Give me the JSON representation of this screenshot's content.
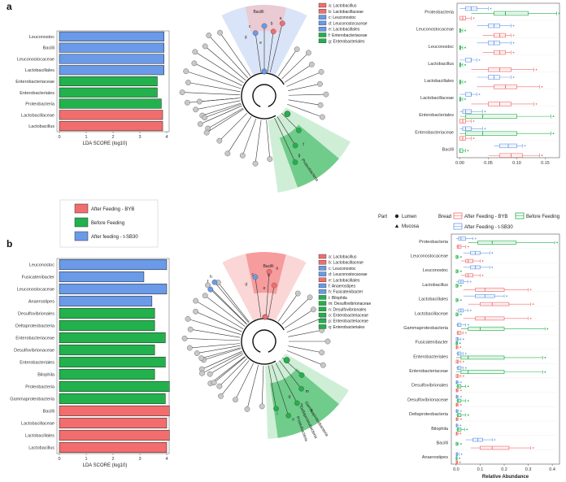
{
  "colors": {
    "byb": "#f26d6d",
    "before": "#22b14c",
    "sb30": "#6a9ae8",
    "clade_red": "#f7b5b5",
    "clade_blue": "#b9cdf3",
    "clade_green": "#a8e0b4",
    "node_grey": "#c8c8c8"
  },
  "panels": [
    "a",
    "b"
  ],
  "legend_groups": {
    "entries": [
      "After Feeding - BYB",
      "Before Feeding",
      "After feeding - t-SB30"
    ],
    "colors": [
      "#f26d6d",
      "#22b14c",
      "#6a9ae8"
    ]
  },
  "legend_part": {
    "title": "Part",
    "entries": [
      "Lumen",
      "Mucosa"
    ]
  },
  "legend_bread": {
    "title": "Bread",
    "entries": [
      "After Feeding - BYB",
      "Before Feeding",
      "After Feeding - t-SB30"
    ],
    "colors": [
      "#f26d6d",
      "#22b14c",
      "#6a9ae8"
    ]
  },
  "clade_a": {
    "legend": [
      {
        "text": "a: Lactobacillus",
        "color": "#f26d6d"
      },
      {
        "text": "b: Lactobacillaceae",
        "color": "#f26d6d"
      },
      {
        "text": "c: Leuconostoc",
        "color": "#6a9ae8"
      },
      {
        "text": "d: Leuconostocaceae",
        "color": "#6a9ae8"
      },
      {
        "text": "e: Lactobacillales",
        "color": "#6a9ae8"
      },
      {
        "text": "f: Enterobacteriaceae",
        "color": "#22b14c"
      },
      {
        "text": "g: Enterobacteriales",
        "color": "#22b14c"
      }
    ],
    "labels": [
      "Bacilli",
      "Proteobacteria"
    ],
    "node_letters": [
      "a",
      "b",
      "c",
      "d",
      "e",
      "f",
      "g"
    ]
  },
  "clade_b": {
    "legend": [
      {
        "text": "a: Lactobacillus",
        "color": "#f26d6d"
      },
      {
        "text": "b: Lactobacillaceae",
        "color": "#f26d6d"
      },
      {
        "text": "c: Leuconostoc",
        "color": "#6a9ae8"
      },
      {
        "text": "d: Leuconostocaceae",
        "color": "#6a9ae8"
      },
      {
        "text": "e: Lactobacillales",
        "color": "#f26d6d"
      },
      {
        "text": "f: Anaerostipes",
        "color": "#6a9ae8"
      },
      {
        "text": "h: Fusicatenibacter",
        "color": "#6a9ae8"
      },
      {
        "text": "i: Bilophila",
        "color": "#22b14c"
      },
      {
        "text": "m: Desulfovibrionaceae",
        "color": "#22b14c"
      },
      {
        "text": "n: Desulfovibrionales",
        "color": "#22b14c"
      },
      {
        "text": "o: Enterobacteriaceae",
        "color": "#22b14c"
      },
      {
        "text": "p: Enterobacteriaceae",
        "color": "#22b14c"
      },
      {
        "text": "q: Enterobacteriales",
        "color": "#22b14c"
      }
    ],
    "labels": [
      "Bacilli",
      "Gammaproteobacteria",
      "Deltaproteobacteria",
      "Proteobacteria"
    ],
    "node_letters": [
      "a",
      "b",
      "c",
      "d",
      "e",
      "f",
      "h",
      "i",
      "m",
      "n",
      "o",
      "p",
      "q"
    ]
  },
  "chart_data": [
    {
      "type": "bar",
      "panel": "a",
      "orientation": "horizontal",
      "categories": [
        "Leuconostoc",
        "Bacilli",
        "Leuconostocaceae",
        "Lactobacillales",
        "Enterobacteriaceae",
        "Enterobacteriales",
        "Proteobacteria",
        "Lactobacillaceae",
        "Lactobacillus"
      ],
      "values": [
        3.9,
        3.9,
        3.9,
        3.9,
        3.65,
        3.65,
        3.8,
        3.85,
        3.85
      ],
      "groups": [
        "sb30",
        "sb30",
        "sb30",
        "sb30",
        "before",
        "before",
        "before",
        "byb",
        "byb"
      ],
      "xlabel": "LDA SCORE (log10)",
      "xlim": [
        0,
        4
      ],
      "xticks": [
        "0",
        "1",
        "2",
        "3",
        "4"
      ]
    },
    {
      "type": "bar",
      "panel": "b",
      "orientation": "horizontal",
      "categories": [
        "Leuconostoc",
        "Fusicatenibacter",
        "Leuconostocaceae",
        "Anaerostipes",
        "Desulfovibrionales",
        "Deltaproteobacteria",
        "Enterobacteriaceae",
        "Desulfovibrionaceae",
        "Enterobacteriales",
        "Bilophila",
        "Proteobacteria",
        "Gammaproteobacteria",
        "Bacilli",
        "Lactobacillaceae",
        "Lactobacillales",
        "Lactobacillus"
      ],
      "values": [
        4.0,
        3.15,
        4.0,
        3.45,
        3.55,
        3.55,
        3.95,
        3.55,
        3.95,
        3.55,
        4.1,
        3.95,
        4.1,
        4.0,
        4.1,
        4.0
      ],
      "groups": [
        "sb30",
        "sb30",
        "sb30",
        "sb30",
        "before",
        "before",
        "before",
        "before",
        "before",
        "before",
        "before",
        "before",
        "byb",
        "byb",
        "byb",
        "byb"
      ],
      "xlabel": "LDA SCORE (log10)",
      "xlim": [
        0,
        4
      ],
      "xticks": [
        "0",
        "1",
        "2",
        "3",
        "4"
      ]
    },
    {
      "type": "box",
      "panel": "a",
      "categories": [
        "Proteobacteria",
        "Leuconostocaceae",
        "Leuconostoc",
        "Lactobacillus",
        "Lactobacillales",
        "Lactobacillaceae",
        "Enterobacteriales",
        "Enterobacteriaceae",
        "Bacilli"
      ],
      "xlim": [
        -0.005,
        0.175
      ],
      "xticks": [
        "0.00",
        "0.05",
        "0.10",
        "0.15"
      ],
      "xlabel": "",
      "boxes": [
        {
          "cat": 0,
          "group": "sb30",
          "min": 0.0,
          "q1": 0.01,
          "med": 0.02,
          "q3": 0.03,
          "max": 0.05
        },
        {
          "cat": 0,
          "group": "before",
          "min": 0.02,
          "q1": 0.06,
          "med": 0.08,
          "q3": 0.12,
          "max": 0.17
        },
        {
          "cat": 0,
          "group": "byb",
          "min": 0.0,
          "q1": 0.0,
          "med": 0.005,
          "q3": 0.01,
          "max": 0.02
        },
        {
          "cat": 1,
          "group": "sb30",
          "min": 0.03,
          "q1": 0.05,
          "med": 0.06,
          "q3": 0.07,
          "max": 0.09
        },
        {
          "cat": 1,
          "group": "before",
          "min": 0.0,
          "q1": 0.0,
          "med": 0.0,
          "q3": 0.0,
          "max": 0.005
        },
        {
          "cat": 1,
          "group": "byb",
          "min": 0.04,
          "q1": 0.06,
          "med": 0.07,
          "q3": 0.08,
          "max": 0.09
        },
        {
          "cat": 2,
          "group": "sb30",
          "min": 0.03,
          "q1": 0.05,
          "med": 0.06,
          "q3": 0.07,
          "max": 0.09
        },
        {
          "cat": 2,
          "group": "before",
          "min": 0.0,
          "q1": 0.0,
          "med": 0.0,
          "q3": 0.0,
          "max": 0.005
        },
        {
          "cat": 2,
          "group": "byb",
          "min": 0.04,
          "q1": 0.06,
          "med": 0.07,
          "q3": 0.08,
          "max": 0.09
        },
        {
          "cat": 3,
          "group": "sb30",
          "min": 0.0,
          "q1": 0.01,
          "med": 0.02,
          "q3": 0.02,
          "max": 0.03
        },
        {
          "cat": 3,
          "group": "before",
          "min": 0.0,
          "q1": 0.0,
          "med": 0.0,
          "q3": 0.0,
          "max": 0.005
        },
        {
          "cat": 3,
          "group": "byb",
          "min": 0.02,
          "q1": 0.05,
          "med": 0.07,
          "q3": 0.09,
          "max": 0.13
        },
        {
          "cat": 4,
          "group": "sb30",
          "min": 0.03,
          "q1": 0.05,
          "med": 0.06,
          "q3": 0.07,
          "max": 0.09
        },
        {
          "cat": 4,
          "group": "before",
          "min": 0.0,
          "q1": 0.0,
          "med": 0.0,
          "q3": 0.0,
          "max": 0.005
        },
        {
          "cat": 4,
          "group": "byb",
          "min": 0.03,
          "q1": 0.06,
          "med": 0.08,
          "q3": 0.1,
          "max": 0.14
        },
        {
          "cat": 5,
          "group": "sb30",
          "min": 0.0,
          "q1": 0.01,
          "med": 0.02,
          "q3": 0.02,
          "max": 0.03
        },
        {
          "cat": 5,
          "group": "before",
          "min": 0.0,
          "q1": 0.0,
          "med": 0.0,
          "q3": 0.0,
          "max": 0.005
        },
        {
          "cat": 5,
          "group": "byb",
          "min": 0.02,
          "q1": 0.05,
          "med": 0.07,
          "q3": 0.09,
          "max": 0.13
        },
        {
          "cat": 6,
          "group": "sb30",
          "min": 0.0,
          "q1": 0.005,
          "med": 0.01,
          "q3": 0.02,
          "max": 0.04
        },
        {
          "cat": 6,
          "group": "before",
          "min": 0.0,
          "q1": 0.01,
          "med": 0.04,
          "q3": 0.1,
          "max": 0.16
        },
        {
          "cat": 6,
          "group": "byb",
          "min": 0.0,
          "q1": 0.0,
          "med": 0.005,
          "q3": 0.01,
          "max": 0.02
        },
        {
          "cat": 7,
          "group": "sb30",
          "min": 0.0,
          "q1": 0.005,
          "med": 0.01,
          "q3": 0.02,
          "max": 0.04
        },
        {
          "cat": 7,
          "group": "before",
          "min": 0.0,
          "q1": 0.01,
          "med": 0.04,
          "q3": 0.1,
          "max": 0.16
        },
        {
          "cat": 7,
          "group": "byb",
          "min": 0.0,
          "q1": 0.0,
          "med": 0.005,
          "q3": 0.01,
          "max": 0.02
        },
        {
          "cat": 8,
          "group": "sb30",
          "min": 0.06,
          "q1": 0.07,
          "med": 0.085,
          "q3": 0.1,
          "max": 0.11
        },
        {
          "cat": 8,
          "group": "before",
          "min": 0.0,
          "q1": 0.0,
          "med": 0.0,
          "q3": 0.005,
          "max": 0.01
        },
        {
          "cat": 8,
          "group": "byb",
          "min": 0.05,
          "q1": 0.07,
          "med": 0.09,
          "q3": 0.11,
          "max": 0.14
        }
      ]
    },
    {
      "type": "box",
      "panel": "b",
      "categories": [
        "Proteobacteria",
        "Leuconostocaceae",
        "Leuconostoc",
        "Lactobacillus",
        "Lactobacillales",
        "Lactobacillaceae",
        "Gammaproteobacteria",
        "Fusicatenibacter",
        "Enterobacteriales",
        "Enterobacteriaceae",
        "Desulfovibrionales",
        "Desulfovibrionaceae",
        "Deltaproteobacteria",
        "Bilophila",
        "Bacilli",
        "Anaerostipes"
      ],
      "xlim": [
        -0.02,
        0.43
      ],
      "xticks": [
        "0.0",
        "0.1",
        "0.2",
        "0.3",
        "0.4"
      ],
      "xlabel": "Relative Abundance",
      "boxes": [
        {
          "cat": 0,
          "group": "sb30",
          "min": 0.0,
          "q1": 0.01,
          "med": 0.02,
          "q3": 0.04,
          "max": 0.07
        },
        {
          "cat": 0,
          "group": "before",
          "min": 0.05,
          "q1": 0.09,
          "med": 0.15,
          "q3": 0.25,
          "max": 0.41
        },
        {
          "cat": 0,
          "group": "byb",
          "min": 0.0,
          "q1": 0.005,
          "med": 0.01,
          "q3": 0.02,
          "max": 0.04
        },
        {
          "cat": 1,
          "group": "sb30",
          "min": 0.03,
          "q1": 0.06,
          "med": 0.08,
          "q3": 0.1,
          "max": 0.14
        },
        {
          "cat": 1,
          "group": "before",
          "min": 0.0,
          "q1": 0.0,
          "med": 0.0,
          "q3": 0.005,
          "max": 0.01
        },
        {
          "cat": 1,
          "group": "byb",
          "min": 0.02,
          "q1": 0.04,
          "med": 0.05,
          "q3": 0.07,
          "max": 0.1
        },
        {
          "cat": 2,
          "group": "sb30",
          "min": 0.03,
          "q1": 0.06,
          "med": 0.08,
          "q3": 0.1,
          "max": 0.14
        },
        {
          "cat": 2,
          "group": "before",
          "min": 0.0,
          "q1": 0.0,
          "med": 0.0,
          "q3": 0.005,
          "max": 0.01
        },
        {
          "cat": 2,
          "group": "byb",
          "min": 0.02,
          "q1": 0.04,
          "med": 0.05,
          "q3": 0.07,
          "max": 0.1
        },
        {
          "cat": 3,
          "group": "sb30",
          "min": 0.0,
          "q1": 0.01,
          "med": 0.02,
          "q3": 0.03,
          "max": 0.05
        },
        {
          "cat": 3,
          "group": "before",
          "min": 0.0,
          "q1": 0.0,
          "med": 0.0,
          "q3": 0.005,
          "max": 0.01
        },
        {
          "cat": 3,
          "group": "byb",
          "min": 0.03,
          "q1": 0.08,
          "med": 0.12,
          "q3": 0.2,
          "max": 0.3
        },
        {
          "cat": 4,
          "group": "sb30",
          "min": 0.03,
          "q1": 0.08,
          "med": 0.12,
          "q3": 0.16,
          "max": 0.2
        },
        {
          "cat": 4,
          "group": "before",
          "min": 0.0,
          "q1": 0.0,
          "med": 0.0,
          "q3": 0.005,
          "max": 0.01
        },
        {
          "cat": 4,
          "group": "byb",
          "min": 0.05,
          "q1": 0.1,
          "med": 0.15,
          "q3": 0.22,
          "max": 0.31
        },
        {
          "cat": 5,
          "group": "sb30",
          "min": 0.0,
          "q1": 0.01,
          "med": 0.02,
          "q3": 0.03,
          "max": 0.05
        },
        {
          "cat": 5,
          "group": "before",
          "min": 0.0,
          "q1": 0.0,
          "med": 0.0,
          "q3": 0.005,
          "max": 0.01
        },
        {
          "cat": 5,
          "group": "byb",
          "min": 0.03,
          "q1": 0.08,
          "med": 0.12,
          "q3": 0.2,
          "max": 0.3
        },
        {
          "cat": 6,
          "group": "sb30",
          "min": 0.0,
          "q1": 0.005,
          "med": 0.01,
          "q3": 0.02,
          "max": 0.04
        },
        {
          "cat": 6,
          "group": "before",
          "min": 0.02,
          "q1": 0.05,
          "med": 0.1,
          "q3": 0.2,
          "max": 0.37
        },
        {
          "cat": 6,
          "group": "byb",
          "min": 0.0,
          "q1": 0.005,
          "med": 0.01,
          "q3": 0.02,
          "max": 0.03
        },
        {
          "cat": 7,
          "group": "sb30",
          "min": 0.0,
          "q1": 0.0,
          "med": 0.005,
          "q3": 0.01,
          "max": 0.02
        },
        {
          "cat": 7,
          "group": "before",
          "min": 0.0,
          "q1": 0.0,
          "med": 0.0,
          "q3": 0.003,
          "max": 0.006
        },
        {
          "cat": 7,
          "group": "byb",
          "min": 0.0,
          "q1": 0.0,
          "med": 0.002,
          "q3": 0.004,
          "max": 0.008
        },
        {
          "cat": 8,
          "group": "sb30",
          "min": 0.0,
          "q1": 0.005,
          "med": 0.01,
          "q3": 0.02,
          "max": 0.03
        },
        {
          "cat": 8,
          "group": "before",
          "min": 0.0,
          "q1": 0.02,
          "med": 0.05,
          "q3": 0.2,
          "max": 0.36
        },
        {
          "cat": 8,
          "group": "byb",
          "min": 0.0,
          "q1": 0.0,
          "med": 0.005,
          "q3": 0.01,
          "max": 0.02
        },
        {
          "cat": 9,
          "group": "sb30",
          "min": 0.0,
          "q1": 0.005,
          "med": 0.01,
          "q3": 0.02,
          "max": 0.03
        },
        {
          "cat": 9,
          "group": "before",
          "min": 0.0,
          "q1": 0.02,
          "med": 0.05,
          "q3": 0.2,
          "max": 0.36
        },
        {
          "cat": 9,
          "group": "byb",
          "min": 0.0,
          "q1": 0.0,
          "med": 0.005,
          "q3": 0.01,
          "max": 0.02
        },
        {
          "cat": 10,
          "group": "sb30",
          "min": 0.0,
          "q1": 0.0,
          "med": 0.002,
          "q3": 0.005,
          "max": 0.01
        },
        {
          "cat": 10,
          "group": "before",
          "min": 0.0,
          "q1": 0.005,
          "med": 0.01,
          "q3": 0.02,
          "max": 0.04
        },
        {
          "cat": 10,
          "group": "byb",
          "min": 0.0,
          "q1": 0.0,
          "med": 0.002,
          "q3": 0.005,
          "max": 0.01
        },
        {
          "cat": 11,
          "group": "sb30",
          "min": 0.0,
          "q1": 0.0,
          "med": 0.002,
          "q3": 0.005,
          "max": 0.01
        },
        {
          "cat": 11,
          "group": "before",
          "min": 0.0,
          "q1": 0.005,
          "med": 0.01,
          "q3": 0.02,
          "max": 0.04
        },
        {
          "cat": 11,
          "group": "byb",
          "min": 0.0,
          "q1": 0.0,
          "med": 0.002,
          "q3": 0.005,
          "max": 0.01
        },
        {
          "cat": 12,
          "group": "sb30",
          "min": 0.0,
          "q1": 0.0,
          "med": 0.002,
          "q3": 0.005,
          "max": 0.01
        },
        {
          "cat": 12,
          "group": "before",
          "min": 0.0,
          "q1": 0.005,
          "med": 0.01,
          "q3": 0.02,
          "max": 0.04
        },
        {
          "cat": 12,
          "group": "byb",
          "min": 0.0,
          "q1": 0.0,
          "med": 0.002,
          "q3": 0.005,
          "max": 0.01
        },
        {
          "cat": 13,
          "group": "sb30",
          "min": 0.0,
          "q1": 0.0,
          "med": 0.002,
          "q3": 0.004,
          "max": 0.008
        },
        {
          "cat": 13,
          "group": "before",
          "min": 0.0,
          "q1": 0.005,
          "med": 0.01,
          "q3": 0.02,
          "max": 0.035
        },
        {
          "cat": 13,
          "group": "byb",
          "min": 0.0,
          "q1": 0.0,
          "med": 0.002,
          "q3": 0.004,
          "max": 0.008
        },
        {
          "cat": 14,
          "group": "sb30",
          "min": 0.04,
          "q1": 0.07,
          "med": 0.09,
          "q3": 0.11,
          "max": 0.15
        },
        {
          "cat": 14,
          "group": "before",
          "min": 0.0,
          "q1": 0.0,
          "med": 0.0,
          "q3": 0.005,
          "max": 0.01
        },
        {
          "cat": 14,
          "group": "byb",
          "min": 0.06,
          "q1": 0.1,
          "med": 0.15,
          "q3": 0.22,
          "max": 0.31
        },
        {
          "cat": 15,
          "group": "sb30",
          "min": 0.0,
          "q1": 0.0,
          "med": 0.003,
          "q3": 0.006,
          "max": 0.012
        },
        {
          "cat": 15,
          "group": "before",
          "min": 0.0,
          "q1": 0.0,
          "med": 0.0,
          "q3": 0.002,
          "max": 0.004
        },
        {
          "cat": 15,
          "group": "byb",
          "min": 0.0,
          "q1": 0.0,
          "med": 0.001,
          "q3": 0.003,
          "max": 0.006
        }
      ]
    }
  ]
}
